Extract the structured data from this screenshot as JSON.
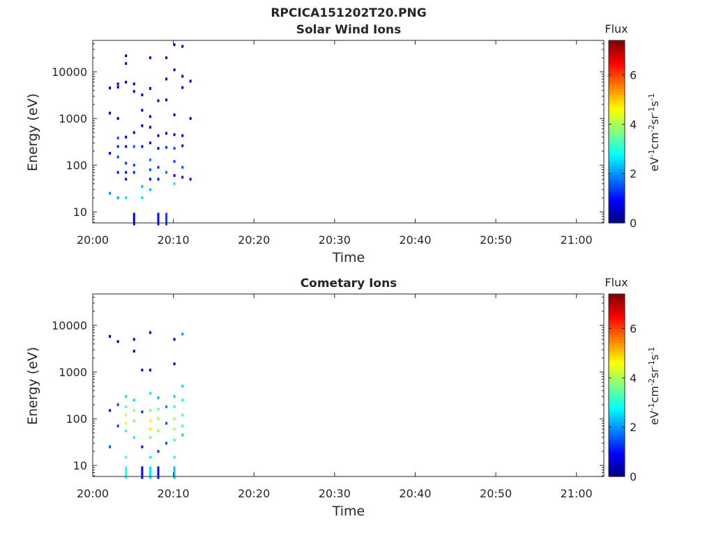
{
  "figure": {
    "title": "RPCICA151202T20.PNG"
  },
  "colorbar": {
    "label": "Flux",
    "ticks": [
      "0",
      "2",
      "4",
      "6"
    ],
    "range": [
      0,
      7.4
    ],
    "colormap": "jet"
  },
  "chart_data": [
    {
      "type": "heatmap",
      "title": "Solar Wind Ions",
      "xlabel": "Time",
      "ylabel": "Energy (eV)",
      "xticks": [
        "20:00",
        "20:10",
        "20:20",
        "20:30",
        "20:40",
        "20:50",
        "21:00"
      ],
      "yticks": [
        "10",
        "100",
        "1000",
        "10000"
      ],
      "yscale": "log",
      "cells": [
        [
          "20:02",
          4500,
          0.4
        ],
        [
          "20:02",
          1300,
          0.4
        ],
        [
          "20:02",
          180,
          0.8
        ],
        [
          "20:02",
          25,
          2.0
        ],
        [
          "20:03",
          5500,
          0.4
        ],
        [
          "20:03",
          4700,
          0.4
        ],
        [
          "20:03",
          1000,
          0.4
        ],
        [
          "20:03",
          380,
          1.5
        ],
        [
          "20:03",
          250,
          1.2
        ],
        [
          "20:03",
          150,
          1.5
        ],
        [
          "20:03",
          70,
          1.0
        ],
        [
          "20:03",
          20,
          2.2
        ],
        [
          "20:04",
          6000,
          0.4
        ],
        [
          "20:04",
          22000,
          0.4
        ],
        [
          "20:04",
          15000,
          0.4
        ],
        [
          "20:04",
          400,
          0.8
        ],
        [
          "20:04",
          250,
          1.0
        ],
        [
          "20:04",
          110,
          1.3
        ],
        [
          "20:04",
          70,
          1.1
        ],
        [
          "20:04",
          50,
          1.0
        ],
        [
          "20:04",
          20,
          2.5
        ],
        [
          "20:05",
          5500,
          0.4
        ],
        [
          "20:05",
          3800,
          0.4
        ],
        [
          "20:05",
          500,
          0.8
        ],
        [
          "20:05",
          250,
          1.6
        ],
        [
          "20:05",
          100,
          1.4
        ],
        [
          "20:05",
          70,
          1.2
        ],
        [
          "20:05",
          7,
          0.8
        ],
        [
          "20:06",
          3200,
          0.4
        ],
        [
          "20:06",
          1500,
          0.4
        ],
        [
          "20:06",
          700,
          0.5
        ],
        [
          "20:06",
          250,
          1.0
        ],
        [
          "20:06",
          35,
          2.3
        ],
        [
          "20:06",
          20,
          2.6
        ],
        [
          "20:07",
          20000,
          0.4
        ],
        [
          "20:07",
          4400,
          0.4
        ],
        [
          "20:07",
          1100,
          0.4
        ],
        [
          "20:07",
          650,
          0.5
        ],
        [
          "20:07",
          300,
          1.0
        ],
        [
          "20:07",
          130,
          1.8
        ],
        [
          "20:07",
          80,
          1.5
        ],
        [
          "20:07",
          50,
          1.0
        ],
        [
          "20:07",
          30,
          2.4
        ],
        [
          "20:08",
          2400,
          0.4
        ],
        [
          "20:08",
          430,
          0.6
        ],
        [
          "20:08",
          230,
          0.9
        ],
        [
          "20:08",
          90,
          1.3
        ],
        [
          "20:08",
          50,
          1.0
        ],
        [
          "20:08",
          7,
          1.0
        ],
        [
          "20:09",
          20000,
          0.4
        ],
        [
          "20:09",
          7000,
          0.4
        ],
        [
          "20:09",
          2500,
          0.4
        ],
        [
          "20:09",
          480,
          0.6
        ],
        [
          "20:09",
          240,
          1.2
        ],
        [
          "20:09",
          70,
          1.8
        ],
        [
          "20:09",
          7,
          1.4
        ],
        [
          "20:10",
          38000,
          0.4
        ],
        [
          "20:10",
          11000,
          0.4
        ],
        [
          "20:10",
          1200,
          0.4
        ],
        [
          "20:10",
          450,
          0.6
        ],
        [
          "20:10",
          230,
          1.5
        ],
        [
          "20:10",
          120,
          1.4
        ],
        [
          "20:10",
          60,
          1.0
        ],
        [
          "20:10",
          40,
          2.6
        ],
        [
          "20:11",
          35000,
          0.4
        ],
        [
          "20:11",
          8000,
          0.4
        ],
        [
          "20:11",
          4600,
          0.4
        ],
        [
          "20:11",
          430,
          0.6
        ],
        [
          "20:11",
          260,
          1.0
        ],
        [
          "20:11",
          90,
          1.6
        ],
        [
          "20:11",
          55,
          1.0
        ],
        [
          "20:12",
          6300,
          0.4
        ],
        [
          "20:12",
          1000,
          0.4
        ],
        [
          "20:12",
          50,
          1.0
        ]
      ]
    },
    {
      "type": "heatmap",
      "title": "Cometary Ions",
      "xlabel": "Time",
      "ylabel": "Energy (eV)",
      "xticks": [
        "20:00",
        "20:10",
        "20:20",
        "20:30",
        "20:40",
        "20:50",
        "21:00"
      ],
      "yticks": [
        "10",
        "100",
        "1000",
        "10000"
      ],
      "yscale": "log",
      "cells": [
        [
          "20:02",
          5800,
          0.4
        ],
        [
          "20:02",
          150,
          1.0
        ],
        [
          "20:02",
          25,
          1.5
        ],
        [
          "20:03",
          4500,
          0.4
        ],
        [
          "20:03",
          200,
          1.5
        ],
        [
          "20:03",
          70,
          1.4
        ],
        [
          "20:04",
          300,
          2.5
        ],
        [
          "20:04",
          180,
          3.2
        ],
        [
          "20:04",
          120,
          4.2
        ],
        [
          "20:04",
          80,
          4.4
        ],
        [
          "20:04",
          55,
          3.0
        ],
        [
          "20:04",
          15,
          3.2
        ],
        [
          "20:04",
          7,
          3.0
        ],
        [
          "20:05",
          5000,
          0.4
        ],
        [
          "20:05",
          2800,
          0.4
        ],
        [
          "20:05",
          250,
          2.5
        ],
        [
          "20:05",
          150,
          3.8
        ],
        [
          "20:05",
          90,
          3.6
        ],
        [
          "20:05",
          40,
          2.8
        ],
        [
          "20:06",
          1100,
          0.4
        ],
        [
          "20:06",
          140,
          1.3
        ],
        [
          "20:06",
          25,
          1.0
        ],
        [
          "20:06",
          7,
          1.0
        ],
        [
          "20:07",
          7000,
          0.4
        ],
        [
          "20:07",
          1100,
          0.4
        ],
        [
          "20:07",
          350,
          2.6
        ],
        [
          "20:07",
          150,
          3.6
        ],
        [
          "20:07",
          90,
          4.5
        ],
        [
          "20:07",
          60,
          4.8
        ],
        [
          "20:07",
          40,
          3.6
        ],
        [
          "20:07",
          15,
          2.8
        ],
        [
          "20:07",
          7,
          2.6
        ],
        [
          "20:08",
          280,
          2.2
        ],
        [
          "20:08",
          160,
          3.5
        ],
        [
          "20:08",
          100,
          4.0
        ],
        [
          "20:08",
          55,
          3.8
        ],
        [
          "20:08",
          20,
          1.4
        ],
        [
          "20:08",
          7,
          1.0
        ],
        [
          "20:09",
          180,
          2.0
        ],
        [
          "20:09",
          80,
          1.5
        ],
        [
          "20:09",
          30,
          1.5
        ],
        [
          "20:10",
          5000,
          0.4
        ],
        [
          "20:10",
          1500,
          0.6
        ],
        [
          "20:10",
          300,
          2.5
        ],
        [
          "20:10",
          180,
          3.0
        ],
        [
          "20:10",
          100,
          3.8
        ],
        [
          "20:10",
          60,
          4.0
        ],
        [
          "20:10",
          35,
          3.0
        ],
        [
          "20:10",
          15,
          2.8
        ],
        [
          "20:10",
          7,
          2.4
        ],
        [
          "20:11",
          6500,
          2.0
        ],
        [
          "20:11",
          500,
          2.5
        ],
        [
          "20:11",
          250,
          3.0
        ],
        [
          "20:11",
          120,
          3.4
        ],
        [
          "20:11",
          70,
          3.2
        ],
        [
          "20:11",
          45,
          2.5
        ]
      ]
    }
  ]
}
